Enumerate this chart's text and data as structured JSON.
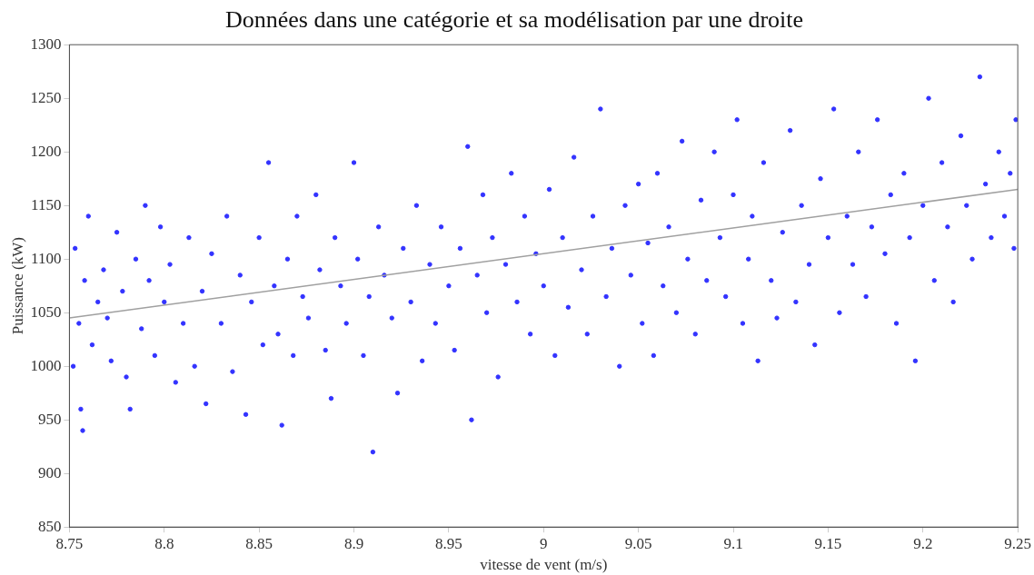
{
  "chart_data": {
    "type": "scatter",
    "title": "Données dans une catégorie et sa modélisation par une droite",
    "xlabel": "vitesse de vent (m/s)",
    "ylabel": "Puissance (kW)",
    "xlim": [
      8.75,
      9.25
    ],
    "ylim": [
      850,
      1300
    ],
    "xticks": [
      8.75,
      8.8,
      8.85,
      8.9,
      8.95,
      9,
      9.05,
      9.1,
      9.15,
      9.2,
      9.25
    ],
    "yticks": [
      850,
      900,
      950,
      1000,
      1050,
      1100,
      1150,
      1200,
      1250,
      1300
    ],
    "marker": "circle",
    "series": [
      {
        "color": "#3333ff",
        "x": [
          8.752,
          8.753,
          8.755,
          8.756,
          8.757,
          8.758,
          8.76,
          8.762,
          8.765,
          8.768,
          8.77,
          8.772,
          8.775,
          8.778,
          8.78,
          8.782,
          8.785,
          8.788,
          8.79,
          8.792,
          8.795,
          8.798,
          8.8,
          8.803,
          8.806,
          8.81,
          8.813,
          8.816,
          8.82,
          8.822,
          8.825,
          8.83,
          8.833,
          8.836,
          8.84,
          8.843,
          8.846,
          8.85,
          8.852,
          8.855,
          8.858,
          8.86,
          8.862,
          8.865,
          8.868,
          8.87,
          8.873,
          8.876,
          8.88,
          8.882,
          8.885,
          8.888,
          8.89,
          8.893,
          8.896,
          8.9,
          8.902,
          8.905,
          8.908,
          8.91,
          8.913,
          8.916,
          8.92,
          8.923,
          8.926,
          8.93,
          8.933,
          8.936,
          8.94,
          8.943,
          8.946,
          8.95,
          8.953,
          8.956,
          8.96,
          8.962,
          8.965,
          8.968,
          8.97,
          8.973,
          8.976,
          8.98,
          8.983,
          8.986,
          8.99,
          8.993,
          8.996,
          9,
          9.003,
          9.006,
          9.01,
          9.013,
          9.016,
          9.02,
          9.023,
          9.026,
          9.03,
          9.033,
          9.036,
          9.04,
          9.043,
          9.046,
          9.05,
          9.052,
          9.055,
          9.058,
          9.06,
          9.063,
          9.066,
          9.07,
          9.073,
          9.076,
          9.08,
          9.083,
          9.086,
          9.09,
          9.093,
          9.096,
          9.1,
          9.102,
          9.105,
          9.108,
          9.11,
          9.113,
          9.116,
          9.12,
          9.123,
          9.126,
          9.13,
          9.133,
          9.136,
          9.14,
          9.143,
          9.146,
          9.15,
          9.153,
          9.156,
          9.16,
          9.163,
          9.166,
          9.17,
          9.173,
          9.176,
          9.18,
          9.183,
          9.186,
          9.19,
          9.193,
          9.196,
          9.2,
          9.203,
          9.206,
          9.21,
          9.213,
          9.216,
          9.22,
          9.223,
          9.226,
          9.23,
          9.233,
          9.236,
          9.24,
          9.243,
          9.246,
          9.248,
          9.249
        ],
        "values": [
          1000,
          1110,
          1040,
          960,
          940,
          1080,
          1140,
          1020,
          1060,
          1090,
          1045,
          1005,
          1125,
          1070,
          990,
          960,
          1100,
          1035,
          1150,
          1080,
          1010,
          1130,
          1060,
          1095,
          985,
          1040,
          1120,
          1000,
          1070,
          965,
          1105,
          1040,
          1140,
          995,
          1085,
          955,
          1060,
          1120,
          1020,
          1190,
          1075,
          1030,
          945,
          1100,
          1010,
          1140,
          1065,
          1045,
          1160,
          1090,
          1015,
          970,
          1120,
          1075,
          1040,
          1190,
          1100,
          1010,
          1065,
          920,
          1130,
          1085,
          1045,
          975,
          1110,
          1060,
          1150,
          1005,
          1095,
          1040,
          1130,
          1075,
          1015,
          1110,
          1205,
          950,
          1085,
          1160,
          1050,
          1120,
          990,
          1095,
          1180,
          1060,
          1140,
          1030,
          1105,
          1075,
          1165,
          1010,
          1120,
          1055,
          1195,
          1090,
          1030,
          1140,
          1240,
          1065,
          1110,
          1000,
          1150,
          1085,
          1170,
          1040,
          1115,
          1010,
          1180,
          1075,
          1130,
          1050,
          1210,
          1100,
          1030,
          1155,
          1080,
          1200,
          1120,
          1065,
          1160,
          1230,
          1040,
          1100,
          1140,
          1005,
          1190,
          1080,
          1045,
          1125,
          1220,
          1060,
          1150,
          1095,
          1020,
          1175,
          1120,
          1240,
          1050,
          1140,
          1095,
          1200,
          1065,
          1130,
          1230,
          1105,
          1160,
          1040,
          1180,
          1120,
          1005,
          1150,
          1250,
          1080,
          1190,
          1130,
          1060,
          1215,
          1150,
          1100,
          1270,
          1170,
          1120,
          1200,
          1140,
          1180,
          1110,
          1230
        ]
      },
      {
        "type": "line",
        "color": "#a0a0a0",
        "marker": "none",
        "x": [
          8.75,
          9.25
        ],
        "values": [
          1045,
          1165
        ]
      }
    ]
  }
}
